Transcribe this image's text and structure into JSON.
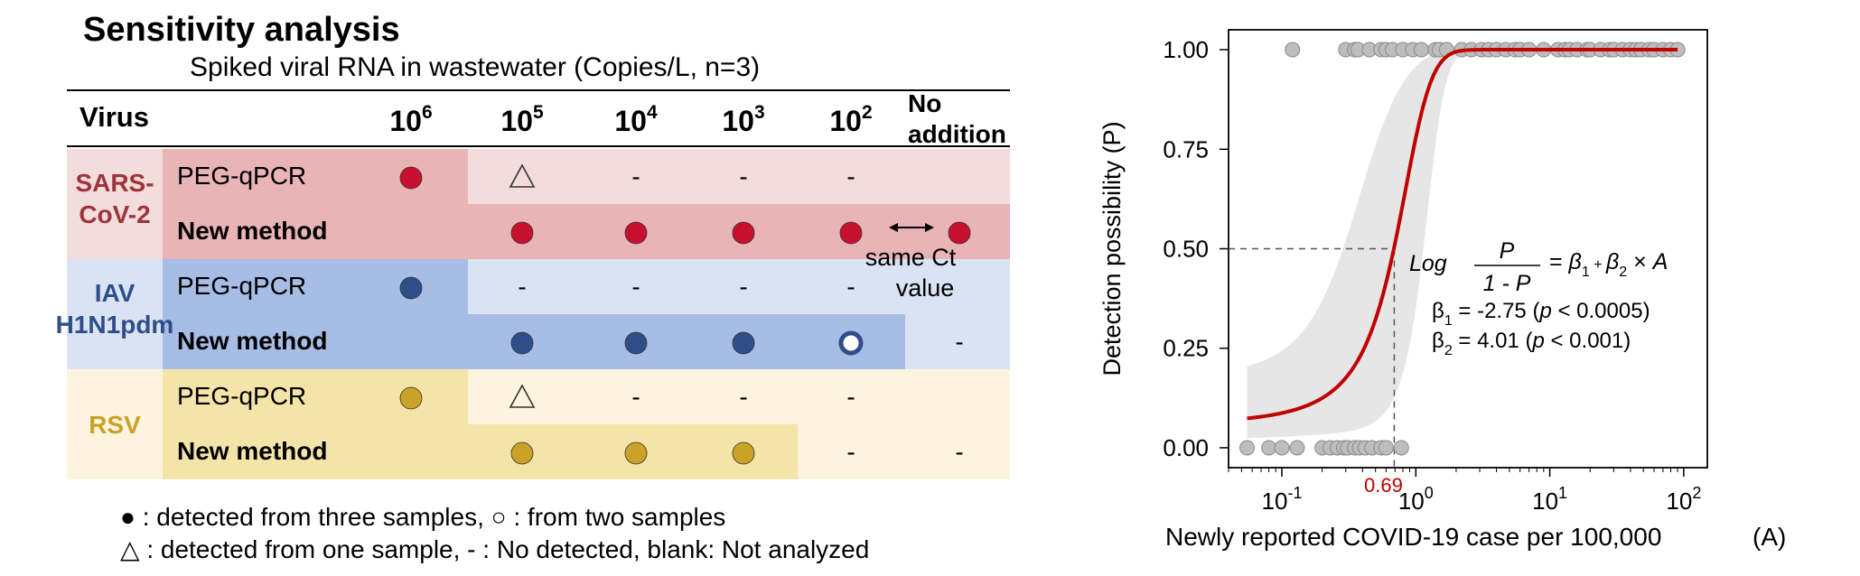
{
  "table": {
    "title": "Sensitivity analysis",
    "subtitle": "Spiked viral RNA in wastewater (Copies/L, n=3)",
    "header_virus": "Virus",
    "concentrations": [
      {
        "base": "10",
        "exp": "6"
      },
      {
        "base": "10",
        "exp": "5"
      },
      {
        "base": "10",
        "exp": "4"
      },
      {
        "base": "10",
        "exp": "3"
      },
      {
        "base": "10",
        "exp": "2"
      }
    ],
    "no_addition": [
      "No",
      "addition"
    ],
    "groups": [
      {
        "virus_lines": [
          "SARS-",
          "CoV-2"
        ],
        "label_color": "#a0333a",
        "label_bg": "#f2dcdc",
        "rows": [
          {
            "method": "PEG-qPCR",
            "bold": false,
            "results": [
              "filled",
              "triangle",
              "-",
              "-",
              "-",
              ""
            ],
            "strong_until": 1,
            "strong_bg": "#e8b4b6",
            "light_bg": "#f2dcdc"
          },
          {
            "method": "New method",
            "bold": true,
            "results": [
              "",
              "filled",
              "filled",
              "filled",
              "filled",
              "filled"
            ],
            "strong_until": 6,
            "strong_bg": "#e8b4b6",
            "light_bg": "#f2dcdc"
          }
        ],
        "marker_color": "#c8102e"
      },
      {
        "virus_lines": [
          "IAV",
          "H1N1pdm"
        ],
        "label_color": "#2e4e8a",
        "label_bg": "#dae3f3",
        "rows": [
          {
            "method": "PEG-qPCR",
            "bold": false,
            "results": [
              "filled",
              "-",
              "-",
              "-",
              "-",
              ""
            ],
            "strong_until": 1,
            "strong_bg": "#a7bde6",
            "light_bg": "#dae3f3"
          },
          {
            "method": "New method",
            "bold": true,
            "results": [
              "",
              "filled",
              "filled",
              "filled",
              "open",
              "-"
            ],
            "strong_until": 5,
            "strong_bg": "#a7bde6",
            "light_bg": "#dae3f3"
          }
        ],
        "marker_color": "#2e4e8a"
      },
      {
        "virus_lines": [
          "RSV"
        ],
        "label_color": "#c9a227",
        "label_bg": "#fcf4de",
        "rows": [
          {
            "method": "PEG-qPCR",
            "bold": false,
            "results": [
              "filled",
              "triangle",
              "-",
              "-",
              "-",
              ""
            ],
            "strong_until": 1,
            "strong_bg": "#f5e4a8",
            "light_bg": "#fcf4de"
          },
          {
            "method": "New method",
            "bold": true,
            "results": [
              "",
              "filled",
              "filled",
              "filled",
              "-",
              "-"
            ],
            "strong_until": 4,
            "strong_bg": "#f5e4a8",
            "light_bg": "#fcf4de"
          }
        ],
        "marker_color": "#c9a227"
      }
    ],
    "annotation": [
      "same Ct",
      "value"
    ],
    "footnote1": ": detected from three samples,  ○ :  from two samples",
    "footnote2": ": detected from one sample, - : No detected, blank: Not analyzed",
    "footnote2_prefix": "△",
    "footnote1_prefix": "●"
  },
  "chart_data": {
    "type": "scatter",
    "xlabel": "Newly reported COVID-19 case per 100,000",
    "xlabel_suffix": "(A)",
    "ylabel": "Detection possibility (P)",
    "x_scale": "log",
    "xlim": [
      0.04,
      150
    ],
    "ylim": [
      -0.05,
      1.05
    ],
    "x_ticks": [
      {
        "value": 0.1,
        "base": "10",
        "exp": "-1"
      },
      {
        "value": 1,
        "base": "10",
        "exp": "0"
      },
      {
        "value": 10,
        "base": "10",
        "exp": "1"
      },
      {
        "value": 100,
        "base": "10",
        "exp": "2"
      }
    ],
    "y_ticks": [
      "0.00",
      "0.25",
      "0.50",
      "0.75",
      "1.00"
    ],
    "points_positive_x": [
      0.12,
      0.3,
      0.35,
      0.37,
      0.45,
      0.55,
      0.6,
      0.67,
      0.8,
      0.95,
      1.1,
      1.4,
      1.5,
      1.7,
      2.2,
      2.6,
      3.1,
      3.5,
      4.0,
      4.7,
      5.5,
      6.0,
      7.0,
      9.0,
      11.5,
      13.0,
      14.0,
      16.0,
      19.0,
      20.0,
      24.0,
      28.0,
      30.0,
      35.0,
      40.0,
      44.0,
      48.0,
      55.0,
      60.0,
      70.0,
      80.0,
      90.0
    ],
    "points_negative_x": [
      0.055,
      0.08,
      0.1,
      0.13,
      0.2,
      0.23,
      0.26,
      0.29,
      0.31,
      0.35,
      0.38,
      0.42,
      0.47,
      0.55,
      0.6,
      0.78
    ],
    "threshold_x": 0.69,
    "threshold_label": "0.69",
    "model": {
      "b1": -2.75,
      "b2": 4.01
    },
    "curve_color": "#c00000",
    "point_color": "#bdbdbd",
    "band_color": "#e6e6e6",
    "equation": {
      "log": "Log",
      "num": "P",
      "den": "1 - P",
      "rhs": "= β",
      "b1_line": "-2.75",
      "b1_p": "(p < 0.0005)",
      "b2_line": "4.01",
      "b2_p": "(p < 0.001)"
    }
  }
}
